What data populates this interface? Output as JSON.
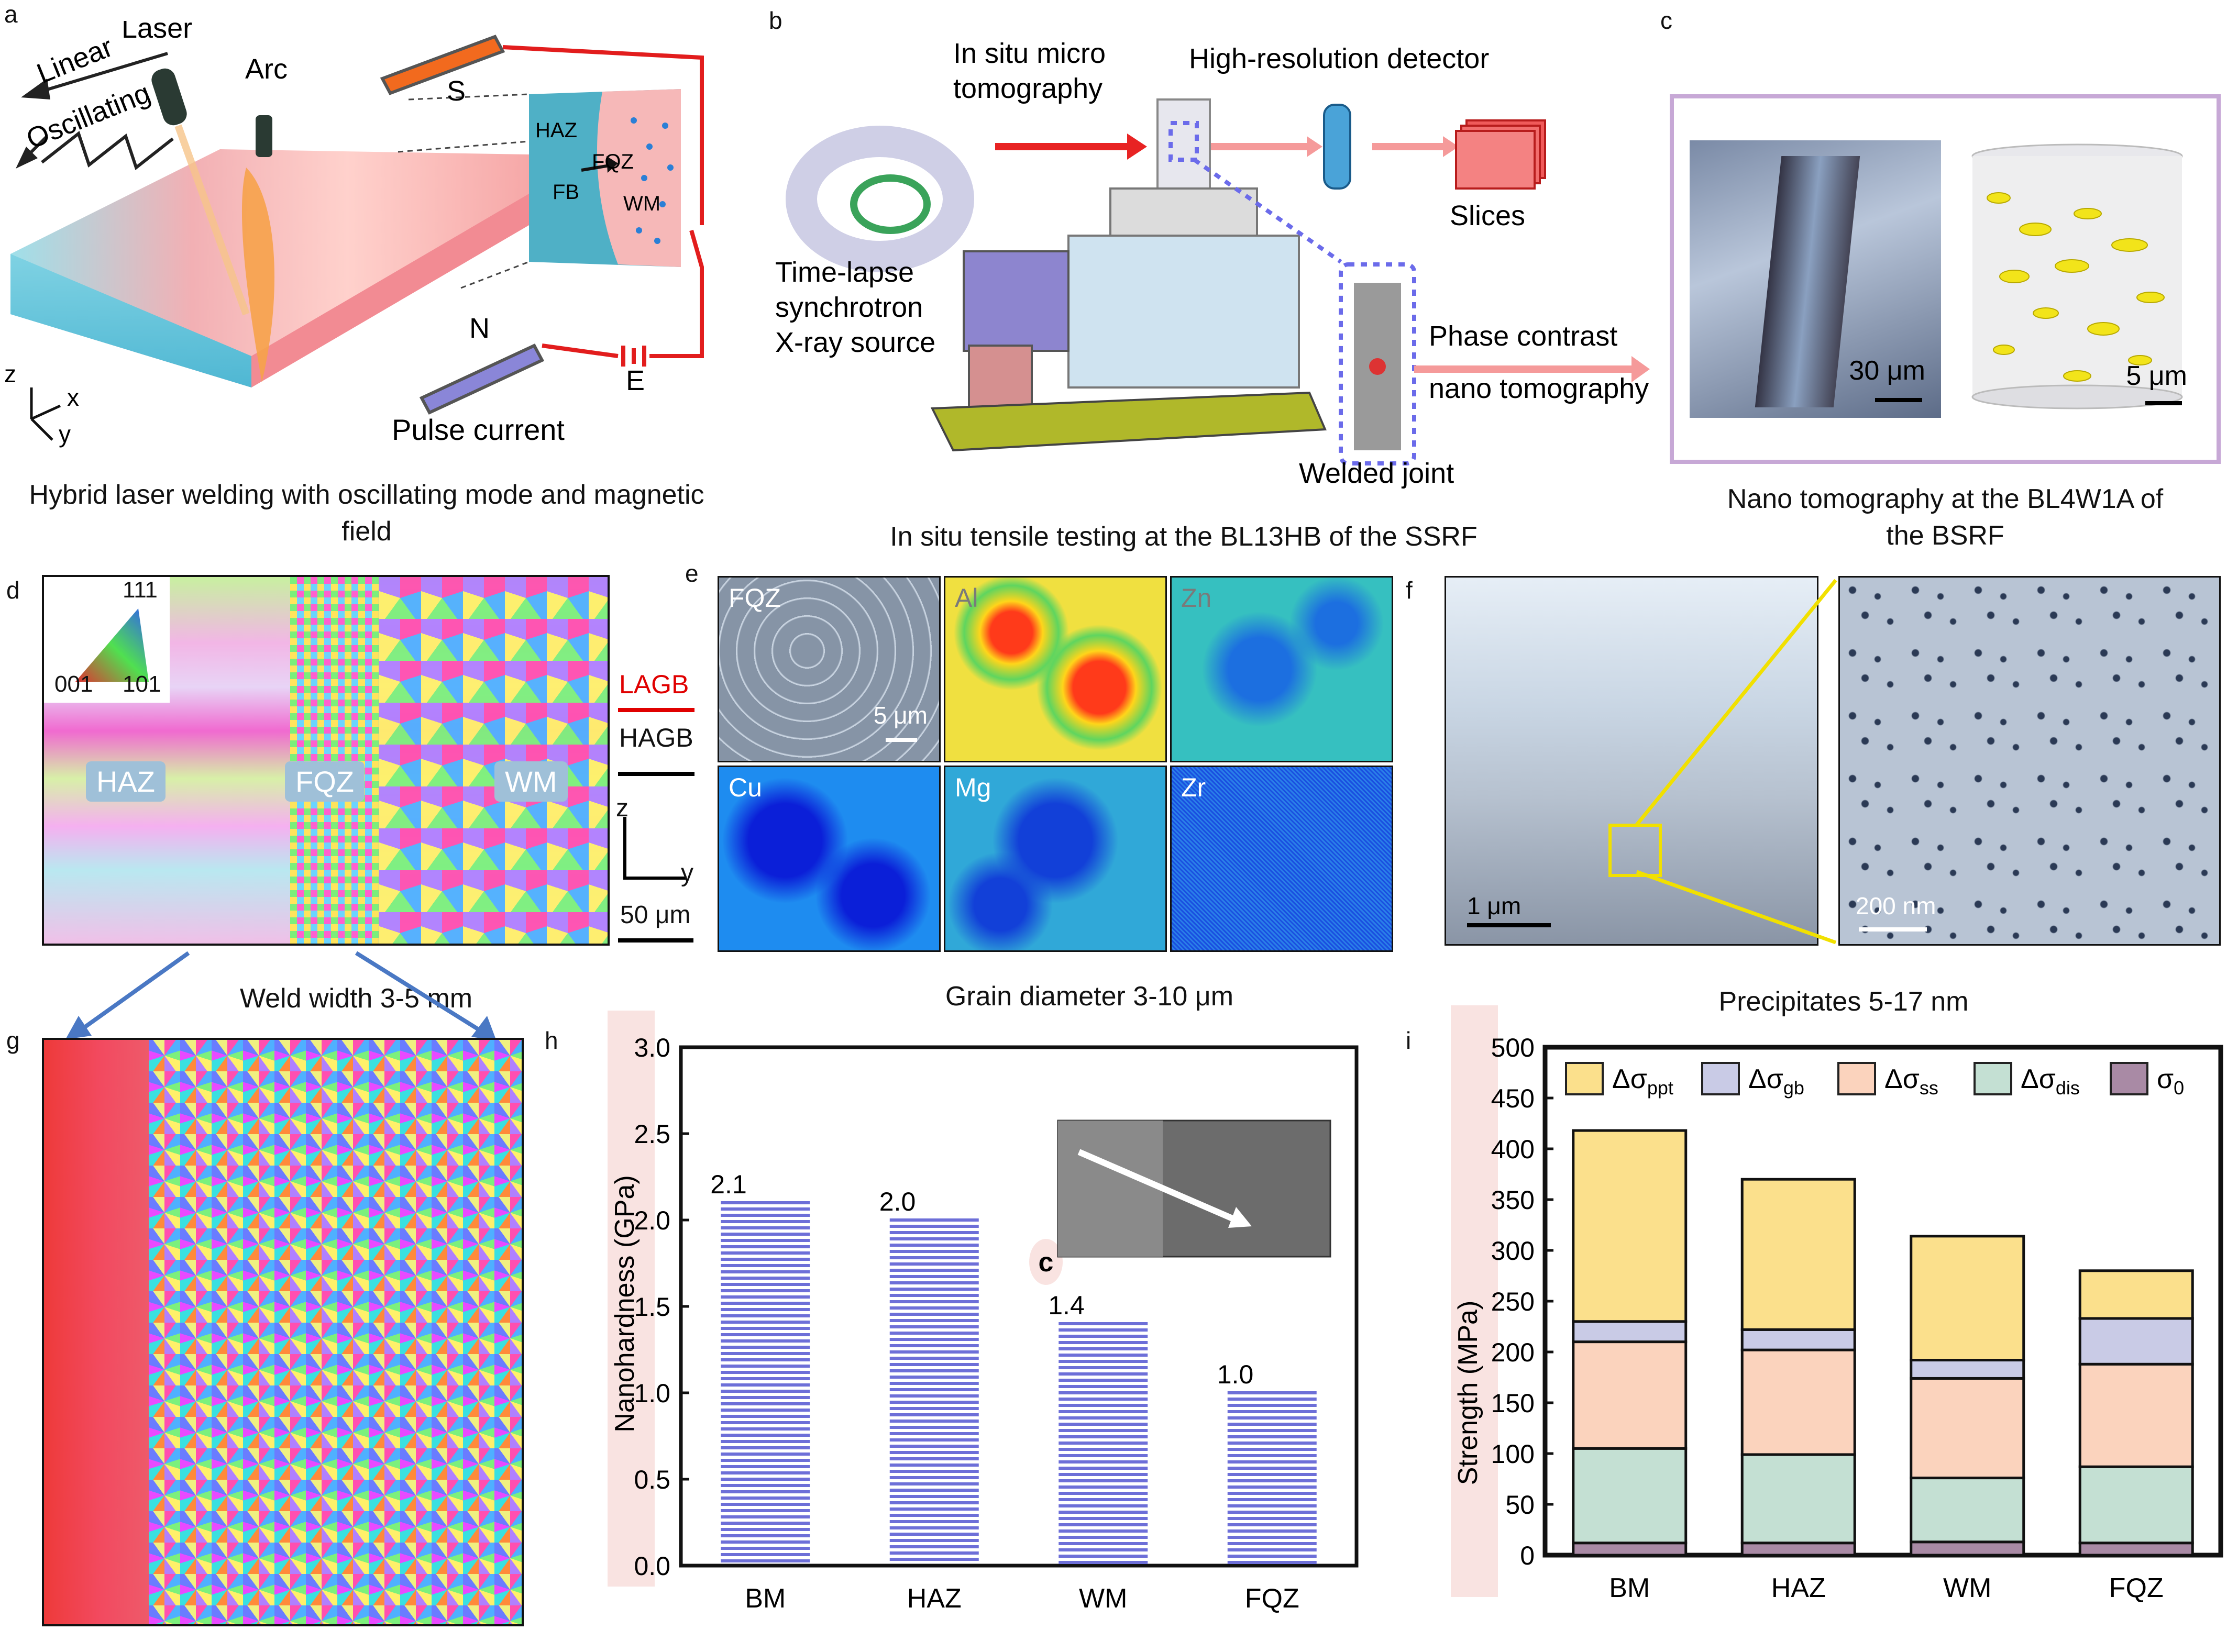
{
  "panels": {
    "a": {
      "label": "a",
      "texts": {
        "linear": "Linear",
        "laser": "Laser",
        "arc": "Arc",
        "oscillating": "Oscillating",
        "s": "S",
        "n": "N",
        "e": "E",
        "haz": "HAZ",
        "fqz": "FQZ",
        "fb": "FB",
        "wm": "WM",
        "z": "z",
        "x": "x",
        "y": "y",
        "pulse": "Pulse current"
      },
      "caption": "Hybrid laser welding with oscillating mode and magnetic field"
    },
    "b": {
      "label": "b",
      "texts": {
        "insitu": "In situ micro",
        "tomography": "tomography",
        "detector": "High-resolution detector",
        "slices": "Slices",
        "timelapse": "Time-lapse",
        "synchrotron": "synchrotron",
        "xray": "X-ray source",
        "phase": "Phase contrast",
        "nano": "nano tomography",
        "welded": "Welded joint"
      },
      "caption": "In situ tensile testing at the BL13HB of the SSRF"
    },
    "c": {
      "label": "c",
      "scale1": "30 μm",
      "scale2": "5 μm",
      "caption_l1": "Nano tomography at the BL4W1A of",
      "caption_l2": "the BSRF"
    },
    "d": {
      "label": "d",
      "ipf": {
        "top": "111",
        "left": "001",
        "right": "101"
      },
      "zones": [
        "HAZ",
        "FQZ",
        "WM"
      ],
      "lagb": "LAGB",
      "hagb": "HAGB",
      "axis_z": "z",
      "axis_y": "y",
      "scale": "50 μm",
      "caption": "Weld width 3-5 mm"
    },
    "e": {
      "label": "e",
      "maps": [
        "FQZ",
        "Al",
        "Zn",
        "Cu",
        "Mg",
        "Zr"
      ],
      "scale": "5 μm",
      "caption": "Grain diameter 3-10 μm"
    },
    "f": {
      "label": "f",
      "scale1": "1 μm",
      "scale2": "200 nm",
      "caption": "Precipitates 5-17 nm"
    },
    "g": {
      "label": "g"
    },
    "h": {
      "label": "h",
      "marker": "c"
    },
    "i": {
      "label": "i"
    }
  },
  "colors": {
    "hagb": "#000000",
    "lagb": "#e00000",
    "bar_h": "#6d6fd8",
    "ppt": "#fbe08c",
    "gb": "#c9cbe6",
    "ss": "#fbd3bd",
    "dis": "#c4e0d3",
    "sigma0": "#a98aa5",
    "frame_c": "#c7a8d6"
  },
  "chart_data": [
    {
      "type": "bar",
      "panel": "h",
      "categories": [
        "BM",
        "HAZ",
        "WM",
        "FQZ"
      ],
      "values": [
        2.1,
        2.0,
        1.4,
        1.0
      ],
      "value_labels": [
        "2.1",
        "2.0",
        "1.4",
        "1.0"
      ],
      "ylabel": "Nanohardness (GPa)",
      "ylim": [
        0,
        3.0
      ],
      "yticks": [
        "0.0",
        "0.5",
        "1.0",
        "1.5",
        "2.0",
        "2.5",
        "3.0"
      ]
    },
    {
      "type": "bar",
      "stacked": true,
      "panel": "i",
      "categories": [
        "BM",
        "HAZ",
        "WM",
        "FQZ"
      ],
      "ylabel": "Strength (MPa)",
      "ylim": [
        0,
        500
      ],
      "yticks": [
        "0",
        "50",
        "100",
        "150",
        "200",
        "250",
        "300",
        "350",
        "400",
        "450",
        "500"
      ],
      "legend_position": "top",
      "series": [
        {
          "key": "sigma0",
          "name": "σ0",
          "values": [
            12,
            12,
            13,
            12
          ]
        },
        {
          "key": "dis",
          "name": "Δσdis",
          "values": [
            93,
            87,
            63,
            75
          ]
        },
        {
          "key": "ss",
          "name": "Δσss",
          "values": [
            105,
            103,
            98,
            101
          ]
        },
        {
          "key": "gb",
          "name": "Δσgb",
          "values": [
            20,
            20,
            18,
            45
          ]
        },
        {
          "key": "ppt",
          "name": "Δσppt",
          "values": [
            188,
            148,
            122,
            47
          ]
        }
      ]
    }
  ]
}
